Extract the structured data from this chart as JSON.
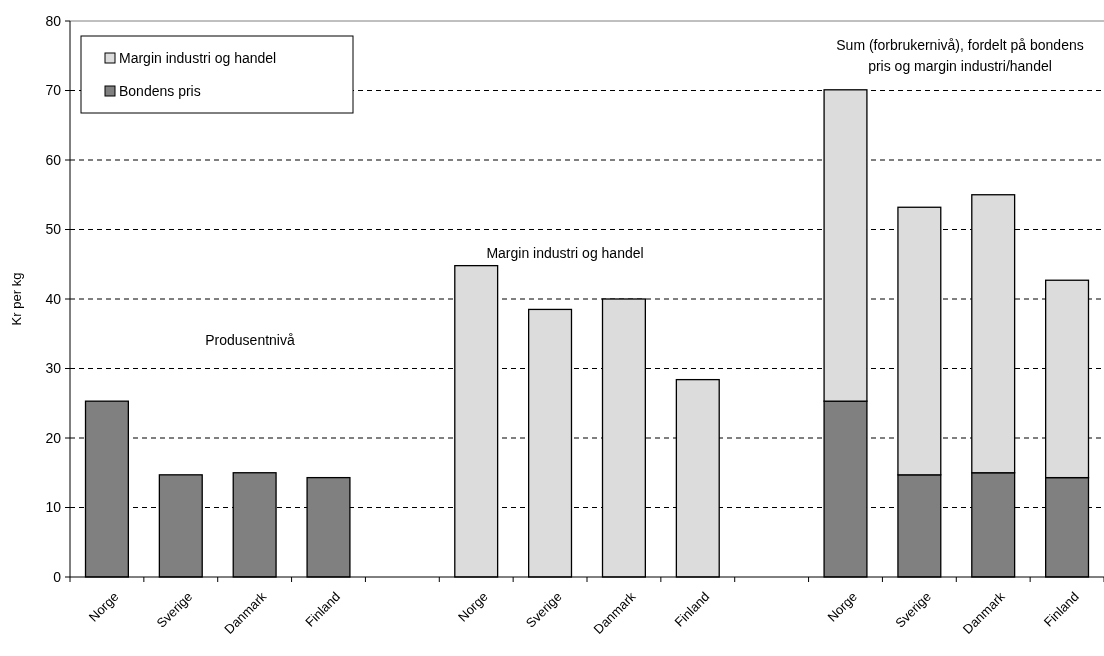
{
  "chart_data": {
    "type": "bar",
    "stacked": true,
    "ylabel": "Kr per kg",
    "categories": [
      "Norge",
      "Sverige",
      "Danmark",
      "Finland",
      null,
      "Norge",
      "Sverige",
      "Danmark",
      "Finland",
      null,
      "Norge",
      "Sverige",
      "Danmark",
      "Finland"
    ],
    "series": [
      {
        "name": "Bondens pris",
        "color": "#808080",
        "values": [
          25.3,
          14.7,
          15.0,
          14.3,
          null,
          null,
          null,
          null,
          null,
          null,
          25.3,
          14.7,
          15.0,
          14.3
        ]
      },
      {
        "name": "Margin industri og handel",
        "color": "#dcdcdc",
        "values": [
          null,
          null,
          null,
          null,
          null,
          44.8,
          38.5,
          40.0,
          28.4,
          null,
          44.8,
          38.5,
          40.0,
          28.4
        ]
      }
    ],
    "ylim": [
      0,
      80
    ],
    "yticks": [
      0,
      10,
      20,
      30,
      40,
      50,
      60,
      70,
      80
    ],
    "grid": "y",
    "legend": "top left",
    "annotations": [
      "Produsentnivå",
      "Margin industri og handel",
      "Sum (forbrukernivå), fordelt på bondens pris og margin industri/handel"
    ]
  }
}
